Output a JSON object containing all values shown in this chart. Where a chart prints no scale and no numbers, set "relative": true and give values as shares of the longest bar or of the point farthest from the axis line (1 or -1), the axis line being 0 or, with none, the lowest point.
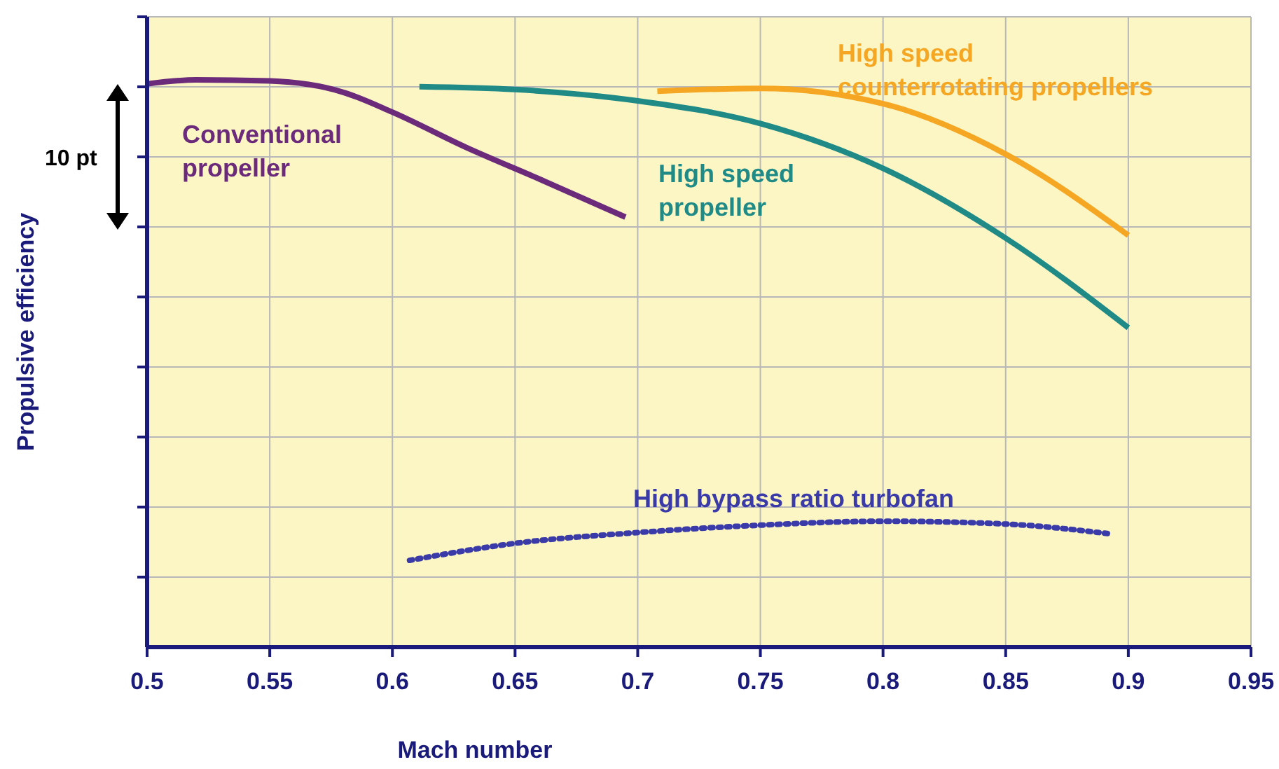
{
  "chart_data": {
    "type": "line",
    "xlabel": "Mach number",
    "ylabel": "Propulsive efficiency",
    "relative": true,
    "xlim": [
      0.5,
      0.95
    ],
    "xticks": [
      0.5,
      0.55,
      0.6,
      0.65,
      0.7,
      0.75,
      0.8,
      0.85,
      0.9,
      0.95
    ],
    "grid": true,
    "annotations": [
      "10 pt"
    ],
    "series": [
      {
        "name": "Conventional propeller",
        "color": "#6b2a7a",
        "line_style": "solid",
        "x": [
          0.5,
          0.52,
          0.55,
          0.58,
          0.6,
          0.63,
          0.66,
          0.695
        ],
        "values": [
          0.993,
          1,
          0.998,
          0.978,
          0.943,
          0.881,
          0.825,
          0.758
        ]
      },
      {
        "name": "High speed propeller",
        "color": "#1f8a86",
        "line_style": "solid",
        "x": [
          0.611,
          0.65,
          0.7,
          0.75,
          0.8,
          0.85,
          0.9
        ],
        "values": [
          0.988,
          0.983,
          0.963,
          0.923,
          0.844,
          0.721,
          0.563
        ]
      },
      {
        "name": "High speed counterrotating propellers",
        "color": "#f5a623",
        "line_style": "solid",
        "x": [
          0.708,
          0.75,
          0.8,
          0.85,
          0.9
        ],
        "values": [
          0.98,
          0.985,
          0.958,
          0.869,
          0.726
        ]
      },
      {
        "name": "High bypass ratio turbofan",
        "color": "#3a3aa8",
        "line_style": "dotted",
        "x": [
          0.607,
          0.65,
          0.7,
          0.75,
          0.8,
          0.85,
          0.892
        ],
        "values": [
          0.153,
          0.183,
          0.202,
          0.215,
          0.222,
          0.217,
          0.2
        ]
      }
    ]
  }
}
